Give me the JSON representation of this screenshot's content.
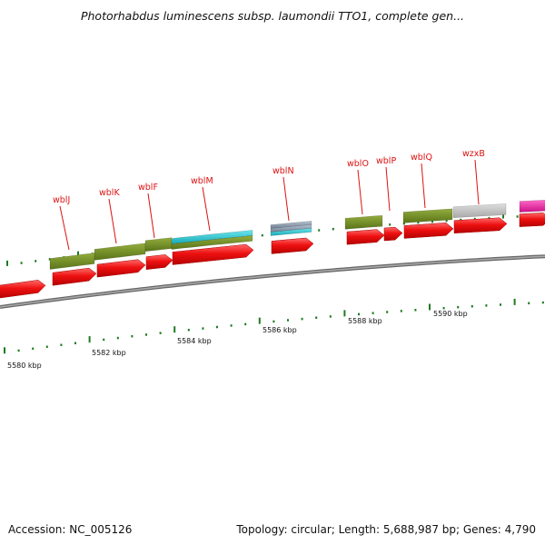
{
  "title": "Photorhabdus luminescens subsp. laumondii TTO1, complete gen...",
  "footer": {
    "accession": "Accession: NC_005126",
    "summary": "Topology: circular; Length: 5,688,987 bp; Genes: 4,790"
  },
  "scale_labels": [
    "5580 kbp",
    "5582 kbp",
    "5584 kbp",
    "5586 kbp",
    "5588 kbp",
    "5590 kbp"
  ],
  "gene_labels": [
    "wblJ",
    "wblK",
    "wblF",
    "wblM",
    "wblN",
    "wblO",
    "wblP",
    "wblQ",
    "wzxB"
  ],
  "colors": {
    "cds": "#ee1111",
    "gene_olive": "#6e8b22",
    "gene_cyan": "#22c4d0",
    "gene_gray": "#bdbdbd",
    "gene_magenta": "#ee22aa",
    "gene_slate": "#8899aa",
    "backbone": "#888888",
    "tick": "#1f7a1f",
    "label": "#dd1111"
  }
}
